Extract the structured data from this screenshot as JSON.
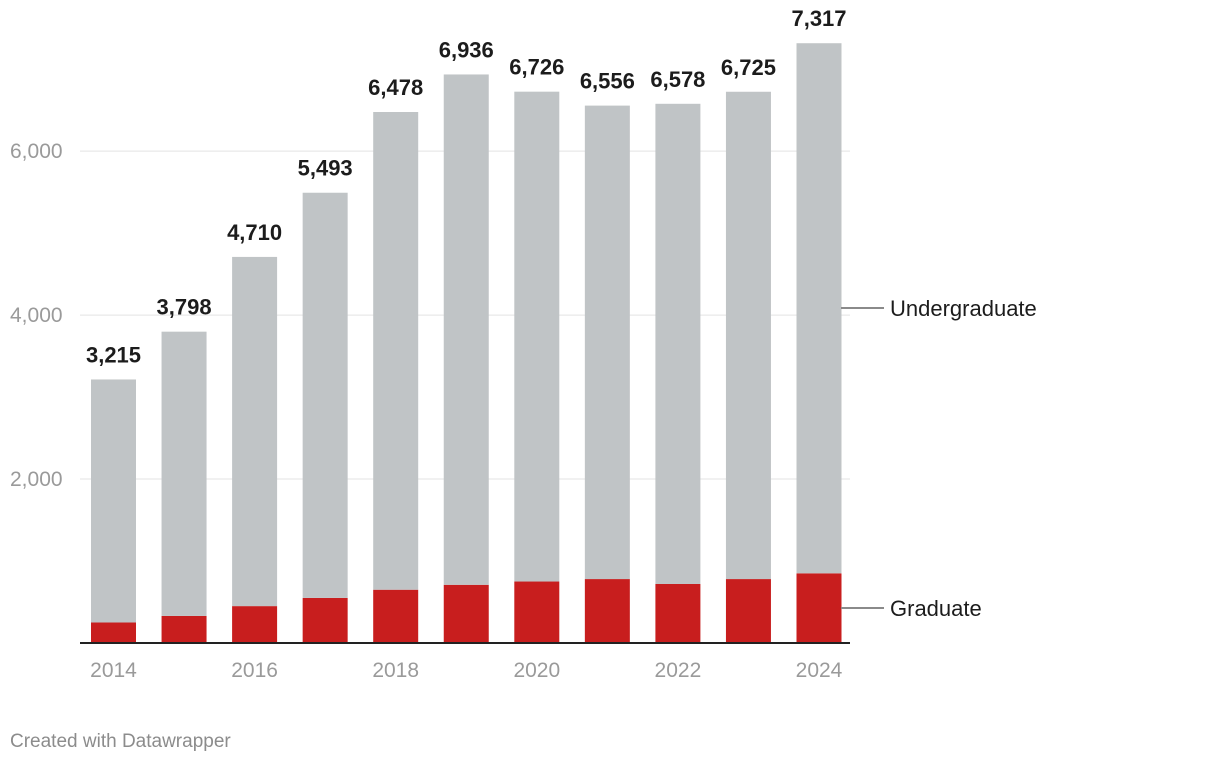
{
  "chart_data": {
    "type": "bar",
    "stacked": true,
    "title": "",
    "xlabel": "",
    "ylabel": "",
    "ylim": [
      0,
      7500
    ],
    "y_ticks": [
      2000,
      4000,
      6000
    ],
    "y_tick_labels": [
      "2,000",
      "4,000",
      "6,000"
    ],
    "x_tick_labels": [
      "2014",
      "2016",
      "2018",
      "2020",
      "2022",
      "2024"
    ],
    "categories": [
      "2014",
      "2015",
      "2016",
      "2017",
      "2018",
      "2019",
      "2020",
      "2021",
      "2022",
      "2023",
      "2024"
    ],
    "series": [
      {
        "name": "Graduate",
        "color": "#c81e1e",
        "values": [
          250,
          330,
          450,
          550,
          650,
          710,
          750,
          780,
          720,
          780,
          850
        ]
      },
      {
        "name": "Undergraduate",
        "color": "#c0c4c6",
        "values": [
          2965,
          3468,
          4260,
          4943,
          5828,
          6226,
          5976,
          5776,
          5858,
          5945,
          6467
        ]
      }
    ],
    "totals": [
      3215,
      3798,
      4710,
      5493,
      6478,
      6936,
      6726,
      6556,
      6578,
      6725,
      7317
    ],
    "total_labels": [
      "3,215",
      "3,798",
      "4,710",
      "5,493",
      "6,478",
      "6,936",
      "6,726",
      "6,556",
      "6,578",
      "6,725",
      "7,317"
    ],
    "legend": [
      "Undergraduate",
      "Graduate"
    ],
    "grid": true
  },
  "footer": {
    "credit": "Created with Datawrapper"
  }
}
